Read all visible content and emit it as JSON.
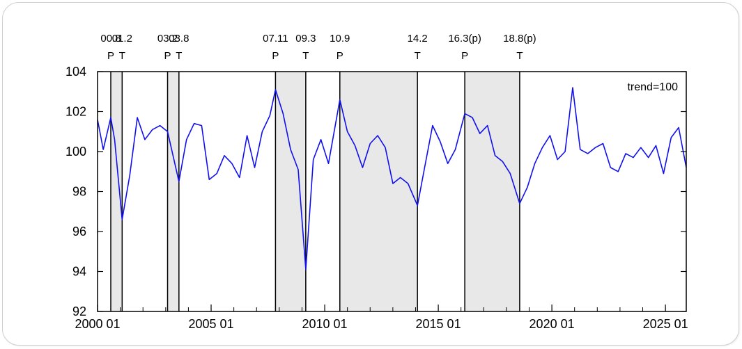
{
  "chart_data": {
    "type": "line",
    "title": "",
    "xlabel": "",
    "ylabel": "",
    "legend": "trend=100",
    "ylim": [
      92,
      104
    ],
    "y_ticks": [
      "92",
      "94",
      "96",
      "98",
      "100",
      "102",
      "104"
    ],
    "xlim": [
      "2000-01",
      "2025-12"
    ],
    "x_ticks": [
      "2000 01",
      "2005 01",
      "2010 01",
      "2015 01",
      "2020 01",
      "2025 01"
    ],
    "series_color": "#1010ee",
    "shade_color": "#e8e8e8",
    "turning_points": [
      {
        "date_label": "00.8",
        "type": "P",
        "date": "2000-08"
      },
      {
        "date_label": "01.2",
        "type": "T",
        "date": "2001-02"
      },
      {
        "date_label": "03.2",
        "type": "P",
        "date": "2003-02"
      },
      {
        "date_label": "03.8",
        "type": "T",
        "date": "2003-08"
      },
      {
        "date_label": "07.11",
        "type": "P",
        "date": "2007-11"
      },
      {
        "date_label": "09.3",
        "type": "T",
        "date": "2009-03"
      },
      {
        "date_label": "10.9",
        "type": "P",
        "date": "2010-09"
      },
      {
        "date_label": "14.2",
        "type": "T",
        "date": "2014-02"
      },
      {
        "date_label": "16.3(p)",
        "type": "P",
        "date": "2016-03"
      },
      {
        "date_label": "18.8(p)",
        "type": "T",
        "date": "2018-08"
      }
    ],
    "series": [
      {
        "x": [
          "2000-01",
          "2000-04",
          "2000-08",
          "2000-10",
          "2001-02",
          "2001-06",
          "2001-10",
          "2002-02",
          "2002-06",
          "2002-10",
          "2003-02",
          "2003-08",
          "2003-12",
          "2004-04",
          "2004-08",
          "2004-12",
          "2005-04",
          "2005-08",
          "2005-12",
          "2006-04",
          "2006-08",
          "2006-12",
          "2007-04",
          "2007-08",
          "2007-11",
          "2008-03",
          "2008-07",
          "2008-11",
          "2009-03",
          "2009-07",
          "2009-11",
          "2010-03",
          "2010-09",
          "2011-01",
          "2011-05",
          "2011-09",
          "2012-01",
          "2012-05",
          "2012-09",
          "2013-01",
          "2013-05",
          "2013-09",
          "2014-02",
          "2014-06",
          "2014-10",
          "2015-02",
          "2015-06",
          "2015-10",
          "2016-03",
          "2016-07",
          "2016-11",
          "2017-03",
          "2017-07",
          "2017-11",
          "2018-03",
          "2018-08",
          "2018-12",
          "2019-04",
          "2019-08",
          "2019-12",
          "2020-04",
          "2020-08",
          "2020-12",
          "2021-04",
          "2021-08",
          "2021-12",
          "2022-04",
          "2022-08",
          "2022-12",
          "2023-04",
          "2023-08",
          "2023-12",
          "2024-04",
          "2024-08",
          "2024-12",
          "2025-04",
          "2025-08",
          "2025-12"
        ],
        "y": [
          101.6,
          100.1,
          101.7,
          100.6,
          96.6,
          98.8,
          101.7,
          100.6,
          101.1,
          101.3,
          101.0,
          98.5,
          100.6,
          101.4,
          101.3,
          98.6,
          98.9,
          99.8,
          99.4,
          98.7,
          100.8,
          99.2,
          101.0,
          101.8,
          103.1,
          101.9,
          100.1,
          99.1,
          94.1,
          99.6,
          100.6,
          99.4,
          102.6,
          101.0,
          100.3,
          99.2,
          100.4,
          100.8,
          100.2,
          98.4,
          98.7,
          98.4,
          97.3,
          99.3,
          101.3,
          100.5,
          99.4,
          100.1,
          101.9,
          101.7,
          100.9,
          101.3,
          99.8,
          99.5,
          98.9,
          97.4,
          98.2,
          99.4,
          100.2,
          100.8,
          99.6,
          100.0,
          103.2,
          100.1,
          99.9,
          100.2,
          100.4,
          99.2,
          99.0,
          99.9,
          99.7,
          100.2,
          99.7,
          100.3,
          98.9,
          100.7,
          101.2,
          99.2
        ]
      }
    ]
  }
}
